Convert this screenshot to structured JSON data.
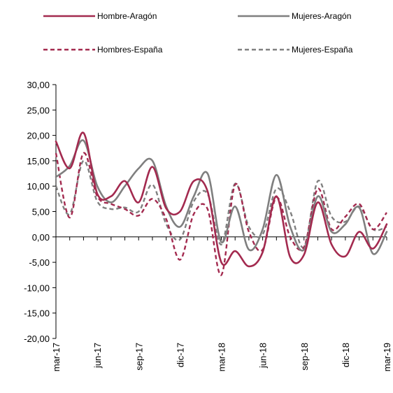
{
  "chart_data": {
    "type": "line",
    "x": [
      "mar-17",
      "abr-17",
      "may-17",
      "jun-17",
      "jul-17",
      "ago-17",
      "sep-17",
      "oct-17",
      "nov-17",
      "dic-17",
      "ene-18",
      "feb-18",
      "mar-18",
      "abr-18",
      "may-18",
      "jun-18",
      "jul-18",
      "ago-18",
      "sep-18",
      "oct-18",
      "nov-18",
      "dic-18",
      "ene-19",
      "feb-19",
      "mar-19"
    ],
    "x_tick_labels": [
      "mar-17",
      "jun-17",
      "sep-17",
      "dic-17",
      "mar-18",
      "jun-18",
      "sep-18",
      "dic-18",
      "mar-19"
    ],
    "y_tick_labels": [
      "30,00",
      "25,00",
      "20,00",
      "15,00",
      "10,00",
      "5,00",
      "0,00",
      "-5,00",
      "-10,00",
      "-15,00",
      "-20,00"
    ],
    "ylim": [
      -20,
      30
    ],
    "y_step": 5,
    "legend_position": "top",
    "grid": false,
    "series": [
      {
        "name": "Hombre-Aragón",
        "color": "#A32A4F",
        "dashed": false,
        "values": [
          18.8,
          13.5,
          20.5,
          8.5,
          8.0,
          11.0,
          6.8,
          13.8,
          5.6,
          5.0,
          11.0,
          9.0,
          -5.0,
          -2.8,
          -5.8,
          -3.0,
          8.0,
          -4.0,
          -3.5,
          6.8,
          -1.5,
          -3.8,
          1.0,
          -2.3,
          2.5
        ]
      },
      {
        "name": "Mujeres-Aragón",
        "color": "#7F7F7F",
        "dashed": false,
        "values": [
          11.8,
          14.0,
          19.0,
          10.0,
          6.8,
          10.0,
          13.5,
          15.0,
          6.0,
          2.0,
          8.0,
          12.5,
          -1.0,
          6.0,
          -2.5,
          1.5,
          12.2,
          2.0,
          -2.5,
          8.0,
          1.0,
          2.5,
          5.8,
          -3.3,
          1.0
        ]
      },
      {
        "name": "Hombres-España",
        "color": "#A32A4F",
        "dashed": true,
        "values": [
          16.5,
          3.8,
          16.5,
          8.0,
          6.5,
          5.5,
          4.2,
          7.5,
          3.5,
          -4.5,
          4.5,
          5.5,
          -7.5,
          10.3,
          1.0,
          -2.5,
          7.8,
          0.0,
          -2.0,
          9.5,
          1.5,
          4.0,
          6.5,
          1.5,
          4.8
        ]
      },
      {
        "name": "Mujeres-España",
        "color": "#808080",
        "dashed": true,
        "values": [
          10.0,
          4.5,
          15.0,
          7.0,
          5.5,
          5.8,
          5.0,
          10.3,
          2.5,
          -0.5,
          7.0,
          8.5,
          -1.5,
          10.5,
          2.0,
          0.5,
          9.5,
          5.0,
          -2.0,
          11.0,
          4.0,
          3.0,
          6.0,
          1.5,
          2.0
        ]
      }
    ]
  }
}
